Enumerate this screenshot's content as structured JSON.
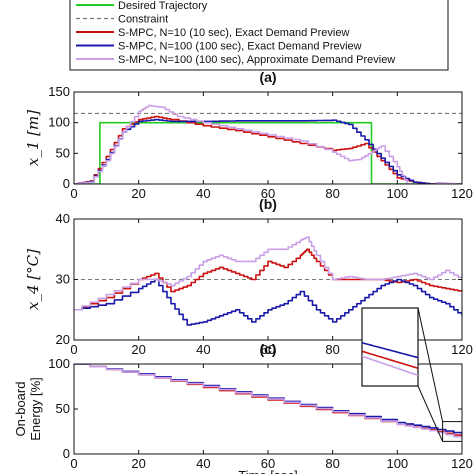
{
  "figure": {
    "legend": {
      "placement": "top",
      "entries": [
        {
          "name": "Desired Trajectory",
          "color": "#22cc22",
          "dash": "solid"
        },
        {
          "name": "Constraint",
          "color": "#777777",
          "dash": "dashed"
        },
        {
          "name": "S-MPC, N=10 (10 sec), Exact Demand Preview",
          "color": "#cc1111",
          "dash": "solid"
        },
        {
          "name": "S-MPC, N=100 (100 sec), Exact Demand Preview",
          "color": "#1a1aaa",
          "dash": "solid"
        },
        {
          "name": "S-MPC, N=100 (100 sec), Approximate Demand Preview",
          "color": "#c9a0e6",
          "dash": "solid"
        }
      ]
    },
    "xlabel": "Time [sec]"
  },
  "chart_data": [
    {
      "type": "line",
      "title": "(a)",
      "ylabel": "x_1 [m]",
      "xlim": [
        0,
        120
      ],
      "ylim": [
        0,
        150
      ],
      "yticks": [
        "0",
        "50",
        "100",
        "150"
      ],
      "xticks": [
        "0",
        "20",
        "40",
        "60",
        "80",
        "100",
        "120"
      ],
      "constraint": 115,
      "series": [
        {
          "name": "Desired Trajectory",
          "x": [
            0,
            8,
            8,
            92,
            92,
            120
          ],
          "y": [
            0,
            0,
            100,
            100,
            0,
            0
          ]
        },
        {
          "name": "S-MPC, N=10 (10 sec), Exact Demand Preview",
          "x": [
            0,
            5,
            10,
            15,
            20,
            25,
            30,
            40,
            50,
            60,
            70,
            80,
            85,
            90,
            95,
            100,
            105,
            110,
            115,
            120
          ],
          "y": [
            0,
            5,
            45,
            90,
            105,
            110,
            105,
            95,
            87,
            77,
            66,
            55,
            58,
            66,
            38,
            10,
            3,
            0,
            0,
            0
          ]
        },
        {
          "name": "S-MPC, N=100 (100 sec), Exact Demand Preview",
          "x": [
            0,
            5,
            10,
            15,
            20,
            25,
            30,
            40,
            50,
            60,
            70,
            80,
            85,
            90,
            95,
            100,
            105,
            110,
            115,
            120
          ],
          "y": [
            0,
            4,
            40,
            85,
            102,
            105,
            102,
            102,
            103,
            103,
            103,
            104,
            97,
            72,
            42,
            15,
            3,
            0,
            0,
            0
          ]
        },
        {
          "name": "S-MPC, N=100 (100 sec), Approximate Demand Preview",
          "x": [
            0,
            5,
            10,
            15,
            20,
            23,
            27,
            32,
            40,
            50,
            60,
            70,
            80,
            85,
            88,
            92,
            95,
            100,
            103,
            108,
            112,
            118,
            120
          ],
          "y": [
            0,
            3,
            38,
            85,
            118,
            128,
            125,
            110,
            100,
            90,
            80,
            70,
            52,
            38,
            40,
            52,
            62,
            28,
            0,
            -8,
            2,
            0,
            0
          ]
        }
      ]
    },
    {
      "type": "line",
      "title": "(b)",
      "ylabel": "x_4 [°C]",
      "xlim": [
        0,
        120
      ],
      "ylim": [
        20,
        40
      ],
      "yticks": [
        "20",
        "30",
        "40"
      ],
      "xticks": [
        "0",
        "20",
        "40",
        "60",
        "80",
        "100",
        "120"
      ],
      "constraint": 30,
      "series": [
        {
          "name": "S-MPC, N=10 (10 sec), Exact Demand Preview",
          "x": [
            0,
            10,
            20,
            25,
            30,
            35,
            40,
            45,
            50,
            55,
            60,
            65,
            70,
            72,
            75,
            80,
            85,
            90,
            95,
            100,
            105,
            110,
            115,
            120
          ],
          "y": [
            25,
            27,
            30,
            31,
            28,
            29,
            31,
            32,
            31,
            30,
            33,
            32,
            34,
            35,
            33,
            30,
            30,
            30,
            30,
            29.5,
            30,
            29,
            28.5,
            28
          ]
        },
        {
          "name": "S-MPC, N=100 (100 sec), Exact Demand Preview",
          "x": [
            0,
            10,
            20,
            25,
            30,
            35,
            40,
            45,
            50,
            55,
            60,
            65,
            70,
            75,
            80,
            85,
            90,
            95,
            100,
            105,
            110,
            115,
            120
          ],
          "y": [
            25,
            26,
            28.5,
            30,
            26,
            22.5,
            23,
            24,
            25,
            23,
            25,
            26,
            28,
            25,
            23,
            25,
            27,
            29,
            30,
            29,
            27,
            26,
            24
          ]
        },
        {
          "name": "S-MPC, N=100 (100 sec), Approximate Demand Preview",
          "x": [
            0,
            10,
            20,
            25,
            30,
            35,
            40,
            45,
            50,
            55,
            60,
            65,
            70,
            72,
            75,
            80,
            85,
            90,
            95,
            100,
            105,
            110,
            115,
            120
          ],
          "y": [
            25,
            27.5,
            30,
            30,
            29,
            30.5,
            33,
            34,
            33,
            33,
            35,
            35,
            36.5,
            37,
            34,
            30,
            30.5,
            30,
            30,
            30.5,
            31,
            30,
            31.5,
            30
          ]
        }
      ]
    },
    {
      "type": "line",
      "title": "(c)",
      "ylabel": "On-board Energy [%]",
      "xlim": [
        0,
        120
      ],
      "ylim": [
        0,
        100
      ],
      "yticks": [
        "0",
        "50",
        "100"
      ],
      "xticks": [
        "0",
        "20",
        "40",
        "60",
        "80",
        "100",
        "120"
      ],
      "zoom_inset": {
        "x_range": [
          114,
          120
        ],
        "y_range": [
          14,
          36
        ]
      },
      "series": [
        {
          "name": "S-MPC, N=10 (10 sec), Exact Demand Preview",
          "x": [
            0,
            20,
            40,
            60,
            80,
            100,
            110,
            120
          ],
          "y": [
            100,
            88,
            74,
            60,
            46,
            33,
            27,
            19
          ]
        },
        {
          "name": "S-MPC, N=100 (100 sec), Exact Demand Preview",
          "x": [
            0,
            20,
            40,
            60,
            80,
            100,
            110,
            120
          ],
          "y": [
            100,
            89,
            76,
            62,
            48,
            35,
            29,
            22
          ]
        },
        {
          "name": "S-MPC, N=100 (100 sec), Approximate Demand Preview",
          "x": [
            0,
            20,
            40,
            60,
            80,
            100,
            110,
            120
          ],
          "y": [
            100,
            88,
            75,
            61,
            47,
            33,
            26,
            17
          ]
        }
      ]
    }
  ]
}
